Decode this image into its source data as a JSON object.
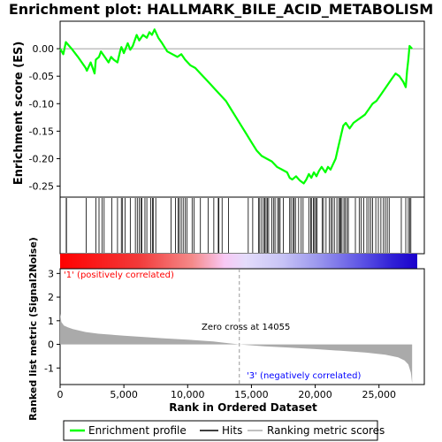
{
  "chart_data": {
    "type": "line",
    "title": "Enrichment plot: HALLMARK_BILE_ACID_METABOLISM",
    "es_panel": {
      "ylabel": "Enrichment score (ES)",
      "ylim": [
        -0.27,
        0.05
      ],
      "yticks": [
        "0.00",
        "-0.05",
        "-0.10",
        "-0.15",
        "-0.20",
        "-0.25"
      ],
      "ytick_values": [
        0.0,
        -0.05,
        -0.1,
        -0.15,
        -0.2,
        -0.25
      ],
      "series": [
        {
          "name": "Enrichment profile",
          "color": "#00ff00",
          "x": [
            0,
            250,
            450,
            900,
            1400,
            2000,
            2100,
            2400,
            2700,
            2800,
            3050,
            3200,
            3500,
            3800,
            4000,
            4200,
            4500,
            4700,
            4800,
            5000,
            5300,
            5500,
            5700,
            6000,
            6200,
            6500,
            6800,
            7000,
            7200,
            7400,
            7700,
            8000,
            8400,
            8800,
            9200,
            9500,
            9800,
            10200,
            10600,
            11000,
            11400,
            11800,
            12200,
            12600,
            13000,
            13400,
            13800,
            14200,
            14600,
            15000,
            15400,
            15800,
            16200,
            16600,
            17000,
            17400,
            17800,
            18000,
            18200,
            18500,
            18800,
            19100,
            19300,
            19500,
            19700,
            19900,
            20100,
            20300,
            20500,
            20800,
            21000,
            21200,
            21400,
            21600,
            21800,
            22000,
            22200,
            22400,
            22700,
            23000,
            23300,
            23600,
            23900,
            24200,
            24500,
            24800,
            25100,
            25400,
            25700,
            26000,
            26300,
            26600,
            26900,
            27100,
            27200,
            27300,
            27400,
            27600
          ],
          "y": [
            0.0,
            -0.01,
            0.012,
            0.0,
            -0.015,
            -0.035,
            -0.04,
            -0.025,
            -0.045,
            -0.02,
            -0.015,
            -0.005,
            -0.015,
            -0.025,
            -0.015,
            -0.02,
            -0.025,
            -0.005,
            0.003,
            -0.008,
            0.01,
            -0.002,
            0.005,
            0.025,
            0.015,
            0.025,
            0.02,
            0.03,
            0.025,
            0.035,
            0.02,
            0.01,
            -0.005,
            -0.01,
            -0.015,
            -0.01,
            -0.02,
            -0.03,
            -0.035,
            -0.045,
            -0.055,
            -0.065,
            -0.075,
            -0.085,
            -0.095,
            -0.11,
            -0.125,
            -0.14,
            -0.155,
            -0.17,
            -0.185,
            -0.195,
            -0.2,
            -0.205,
            -0.215,
            -0.22,
            -0.225,
            -0.235,
            -0.238,
            -0.232,
            -0.24,
            -0.245,
            -0.238,
            -0.228,
            -0.235,
            -0.225,
            -0.232,
            -0.222,
            -0.215,
            -0.225,
            -0.215,
            -0.22,
            -0.21,
            -0.2,
            -0.18,
            -0.16,
            -0.14,
            -0.135,
            -0.145,
            -0.135,
            -0.13,
            -0.125,
            -0.12,
            -0.11,
            -0.1,
            -0.095,
            -0.085,
            -0.075,
            -0.065,
            -0.055,
            -0.045,
            -0.05,
            -0.06,
            -0.07,
            -0.04,
            -0.02,
            0.005,
            0.0
          ]
        }
      ]
    },
    "hits": {
      "name": "Hits",
      "positions": [
        480,
        500,
        2050,
        2800,
        3050,
        3300,
        3450,
        4050,
        4500,
        4800,
        4900,
        5100,
        5500,
        5900,
        6050,
        6200,
        6350,
        6400,
        6650,
        6800,
        7100,
        7250,
        7300,
        7500,
        8700,
        9050,
        9250,
        9350,
        9500,
        9650,
        9800,
        9950,
        10350,
        10500,
        11000,
        11600,
        12050,
        12400,
        12450,
        12700,
        13200,
        14750,
        15100,
        15550,
        15650,
        15800,
        15950,
        16050,
        16150,
        16250,
        16350,
        16600,
        16750,
        16850,
        17050,
        17150,
        17250,
        17500,
        18000,
        18100,
        18250,
        18350,
        18450,
        18700,
        18900,
        19050,
        19500,
        19650,
        19700,
        19850,
        19950,
        20050,
        20150,
        20550,
        20650,
        20850,
        21100,
        21250,
        21350,
        21500,
        21700,
        21850,
        21950,
        22000,
        22100,
        22250,
        22350,
        22500,
        22600,
        23150,
        23450,
        23600,
        23800,
        24050,
        24200,
        24350,
        24500,
        24750,
        24950,
        25150,
        25350,
        25500,
        25650,
        25800,
        26750,
        27100,
        27300,
        27400,
        27500
      ]
    },
    "ranked_panel": {
      "ylabel": "Ranked list metric (Signal2Noise)",
      "xlabel": "Rank in Ordered Dataset",
      "ylim": [
        -1.7,
        3.2
      ],
      "yticks": [
        "3",
        "2",
        "1",
        "0",
        "-1"
      ],
      "ytick_values": [
        3,
        2,
        1,
        0,
        -1
      ],
      "xlim": [
        0,
        28000
      ],
      "xticks": [
        "0",
        "5,000",
        "10,000",
        "15,000",
        "20,000",
        "25,000"
      ],
      "xtick_values": [
        0,
        5000,
        10000,
        15000,
        20000,
        25000
      ],
      "fill_color": "#aaaaaa",
      "metric_x": [
        0,
        100,
        300,
        600,
        1000,
        2000,
        3000,
        5000,
        8000,
        10000,
        12000,
        14055,
        16000,
        18000,
        20000,
        22000,
        24000,
        25500,
        26500,
        27000,
        27300,
        27500,
        27600
      ],
      "metric_y": [
        1.3,
        0.95,
        0.8,
        0.72,
        0.65,
        0.52,
        0.45,
        0.37,
        0.26,
        0.2,
        0.12,
        0.0,
        -0.08,
        -0.14,
        -0.2,
        -0.27,
        -0.35,
        -0.44,
        -0.55,
        -0.68,
        -0.85,
        -1.2,
        -1.65
      ],
      "positive_label": "'1' (positively correlated)",
      "negative_label": "'3' (negatively correlated)",
      "zero_cross_label": "Zero cross at 14055",
      "zero_cross": 14055
    },
    "legend": [
      {
        "label": "Enrichment profile",
        "color": "#00ff00"
      },
      {
        "label": "Hits",
        "color": "#000000"
      },
      {
        "label": "Ranking metric scores",
        "color": "#c0c0c0"
      }
    ],
    "colors": {
      "positive_label": "#ff0000",
      "negative_label": "#0000ff",
      "zero_line": "#808080"
    }
  }
}
